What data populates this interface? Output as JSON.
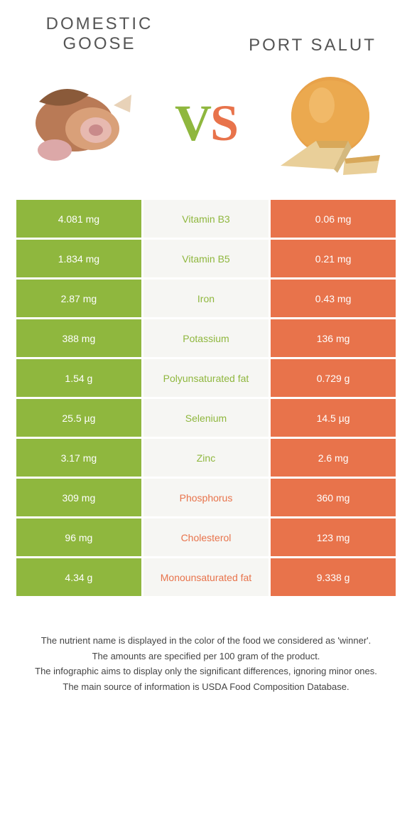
{
  "header": {
    "left_title": "Domestic goose",
    "right_title": "Port Salut",
    "vs_v": "V",
    "vs_s": "S"
  },
  "colors": {
    "left": "#8fb73e",
    "right": "#e8734b",
    "mid_bg": "#f6f6f3",
    "page_bg": "#ffffff"
  },
  "table": {
    "rows": [
      {
        "left": "4.081 mg",
        "mid": "Vitamin B3",
        "right": "0.06 mg",
        "winner": "left"
      },
      {
        "left": "1.834 mg",
        "mid": "Vitamin B5",
        "right": "0.21 mg",
        "winner": "left"
      },
      {
        "left": "2.87 mg",
        "mid": "Iron",
        "right": "0.43 mg",
        "winner": "left"
      },
      {
        "left": "388 mg",
        "mid": "Potassium",
        "right": "136 mg",
        "winner": "left"
      },
      {
        "left": "1.54 g",
        "mid": "Polyunsaturated fat",
        "right": "0.729 g",
        "winner": "left"
      },
      {
        "left": "25.5 µg",
        "mid": "Selenium",
        "right": "14.5 µg",
        "winner": "left"
      },
      {
        "left": "3.17 mg",
        "mid": "Zinc",
        "right": "2.6 mg",
        "winner": "left"
      },
      {
        "left": "309 mg",
        "mid": "Phosphorus",
        "right": "360 mg",
        "winner": "right"
      },
      {
        "left": "96 mg",
        "mid": "Cholesterol",
        "right": "123 mg",
        "winner": "right"
      },
      {
        "left": "4.34 g",
        "mid": "Monounsaturated fat",
        "right": "9.338 g",
        "winner": "right"
      }
    ]
  },
  "notes": {
    "line1": "The nutrient name is displayed in the color of the food we considered as 'winner'.",
    "line2": "The amounts are specified per 100 gram of the product.",
    "line3": "The infographic aims to display only the significant differences, ignoring minor ones.",
    "line4": "The main source of information is USDA Food Composition Database."
  }
}
